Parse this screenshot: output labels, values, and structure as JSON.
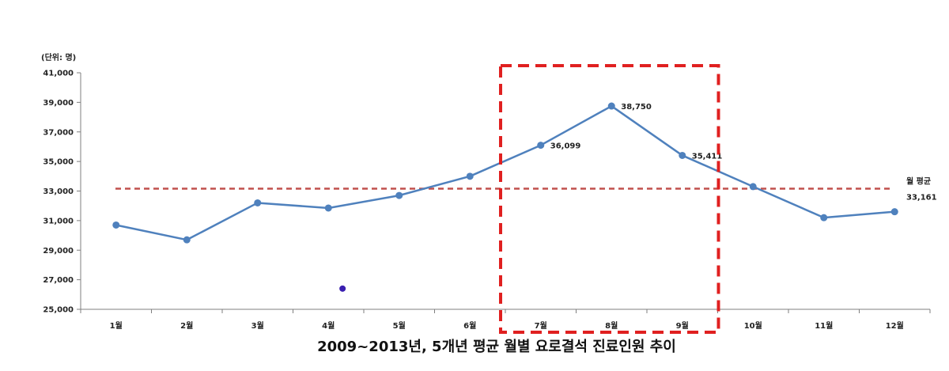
{
  "chart_data": {
    "type": "line",
    "title": "2009~2013년, 5개년 평균 월별 요로결석 진료인원 추이",
    "unit_label": "(단위: 명)",
    "categories": [
      "1월",
      "2월",
      "3월",
      "4월",
      "5월",
      "6월",
      "7월",
      "8월",
      "9월",
      "10월",
      "11월",
      "12월"
    ],
    "series": [
      {
        "values": [
          30700,
          29700,
          32200,
          31850,
          32700,
          34000,
          36099,
          38750,
          35411,
          33300,
          31200,
          31600
        ],
        "color": "#4f81bd"
      }
    ],
    "data_labels": [
      {
        "index": 6,
        "text": "36,099"
      },
      {
        "index": 7,
        "text": "38,750"
      },
      {
        "index": 8,
        "text": "35,411"
      }
    ],
    "reference_line": {
      "label": "월 평균",
      "value": 33161,
      "value_text": "33,161",
      "color": "#c0504d"
    },
    "y_ticks": [
      "25,000",
      "27,000",
      "29,000",
      "31,000",
      "33,000",
      "35,000",
      "37,000",
      "39,000",
      "41,000"
    ],
    "ylim": [
      25000,
      41000
    ],
    "highlight": {
      "from_category": "7월",
      "to_category": "9월",
      "color": "#e02020"
    },
    "stray_marker": {
      "x_position": 4.2,
      "y": 26400,
      "color": "#3a1fb0"
    },
    "grid": false,
    "legend": "none"
  }
}
